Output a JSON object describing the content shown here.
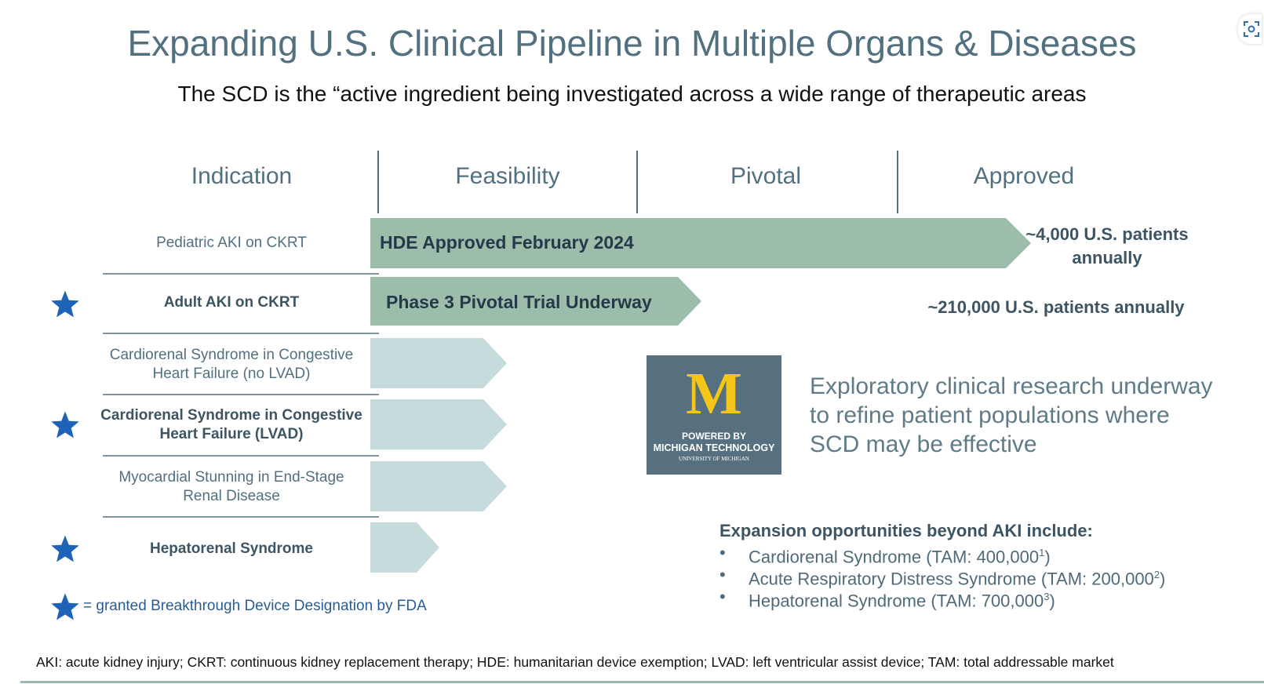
{
  "slide": {
    "title": "Expanding U.S. Clinical Pipeline in Multiple Organs  & Diseases",
    "subtitle": "The SCD is the “active ingredient being investigated across a wide range of therapeutic areas"
  },
  "columns": [
    "Indication",
    "Feasibility",
    "Pivotal",
    "Approved"
  ],
  "indications": [
    {
      "label": "Pediatric AKI on CKRT",
      "breakthrough": false
    },
    {
      "label": "Adult AKI on CKRT",
      "breakthrough": true
    },
    {
      "label": "Cardiorenal Syndrome in Congestive Heart Failure (no LVAD)",
      "breakthrough": false
    },
    {
      "label": "Cardiorenal Syndrome in Congestive Heart Failure (LVAD)",
      "breakthrough": true
    },
    {
      "label": "Myocardial Stunning in End-Stage Renal Disease",
      "breakthrough": false
    },
    {
      "label": "Hepatorenal Syndrome",
      "breakthrough": true
    }
  ],
  "progress_labels": {
    "pediatric": "HDE Approved February 2024",
    "adult": "Phase 3 Pivotal Trial Underway"
  },
  "stats": {
    "pediatric": "~4,000 U.S. patients annually",
    "adult": "~210,000 U.S. patients annually"
  },
  "logo": {
    "letter": "M",
    "line1": "POWERED BY",
    "line2": "MICHIGAN TECHNOLOGY",
    "line3": "UNIVERSITY OF MICHIGAN"
  },
  "exploratory_text": "Exploratory clinical research underway to refine patient populations where SCD may be effective",
  "expansion": {
    "heading": "Expansion opportunities beyond AKI include:",
    "items": [
      {
        "text": "Cardiorenal Syndrome (TAM: 400,000",
        "sup": "1",
        "close": ")"
      },
      {
        "text": "Acute Respiratory Distress Syndrome (TAM: 200,000",
        "sup": "2",
        "close": ")"
      },
      {
        "text": "Hepatorenal Syndrome (TAM: 700,000",
        "sup": "3",
        "close": ")"
      }
    ]
  },
  "legend": "= granted Breakthrough Device Designation by FDA",
  "footnote": "AKI: acute kidney injury; CKRT: continuous kidney replacement therapy; HDE: humanitarian device exemption; LVAD: left ventricular assist device; TAM: total addressable market",
  "colors": {
    "heading": "#52707f",
    "approved_arrow": "#9dbdab",
    "feasibility_arrow": "#c6dcdc",
    "star": "#1f63b8",
    "logo_bg": "#56707f",
    "logo_yellow": "#f5c518"
  },
  "icons": {
    "star": "star-icon",
    "corner": "screen-capture-icon"
  }
}
